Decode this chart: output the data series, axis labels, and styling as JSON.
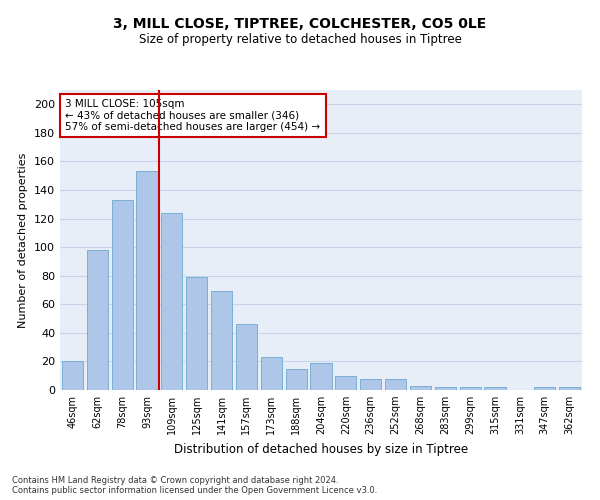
{
  "title1": "3, MILL CLOSE, TIPTREE, COLCHESTER, CO5 0LE",
  "title2": "Size of property relative to detached houses in Tiptree",
  "xlabel": "Distribution of detached houses by size in Tiptree",
  "ylabel": "Number of detached properties",
  "categories": [
    "46sqm",
    "62sqm",
    "78sqm",
    "93sqm",
    "109sqm",
    "125sqm",
    "141sqm",
    "157sqm",
    "173sqm",
    "188sqm",
    "204sqm",
    "220sqm",
    "236sqm",
    "252sqm",
    "268sqm",
    "283sqm",
    "299sqm",
    "315sqm",
    "331sqm",
    "347sqm",
    "362sqm"
  ],
  "values": [
    20,
    98,
    133,
    153,
    124,
    79,
    69,
    46,
    23,
    15,
    19,
    10,
    8,
    8,
    3,
    2,
    2,
    2,
    0,
    2,
    2
  ],
  "bar_color": "#aec6e8",
  "bar_edge_color": "#7aafd4",
  "vline_color": "#cc0000",
  "annotation_text": "3 MILL CLOSE: 105sqm\n← 43% of detached houses are smaller (346)\n57% of semi-detached houses are larger (454) →",
  "annotation_box_color": "#ffffff",
  "annotation_box_edge_color": "#cc0000",
  "ylim": [
    0,
    210
  ],
  "yticks": [
    0,
    20,
    40,
    60,
    80,
    100,
    120,
    140,
    160,
    180,
    200
  ],
  "grid_color": "#c8d4e8",
  "bg_color": "#e8eef8",
  "footer": "Contains HM Land Registry data © Crown copyright and database right 2024.\nContains public sector information licensed under the Open Government Licence v3.0."
}
